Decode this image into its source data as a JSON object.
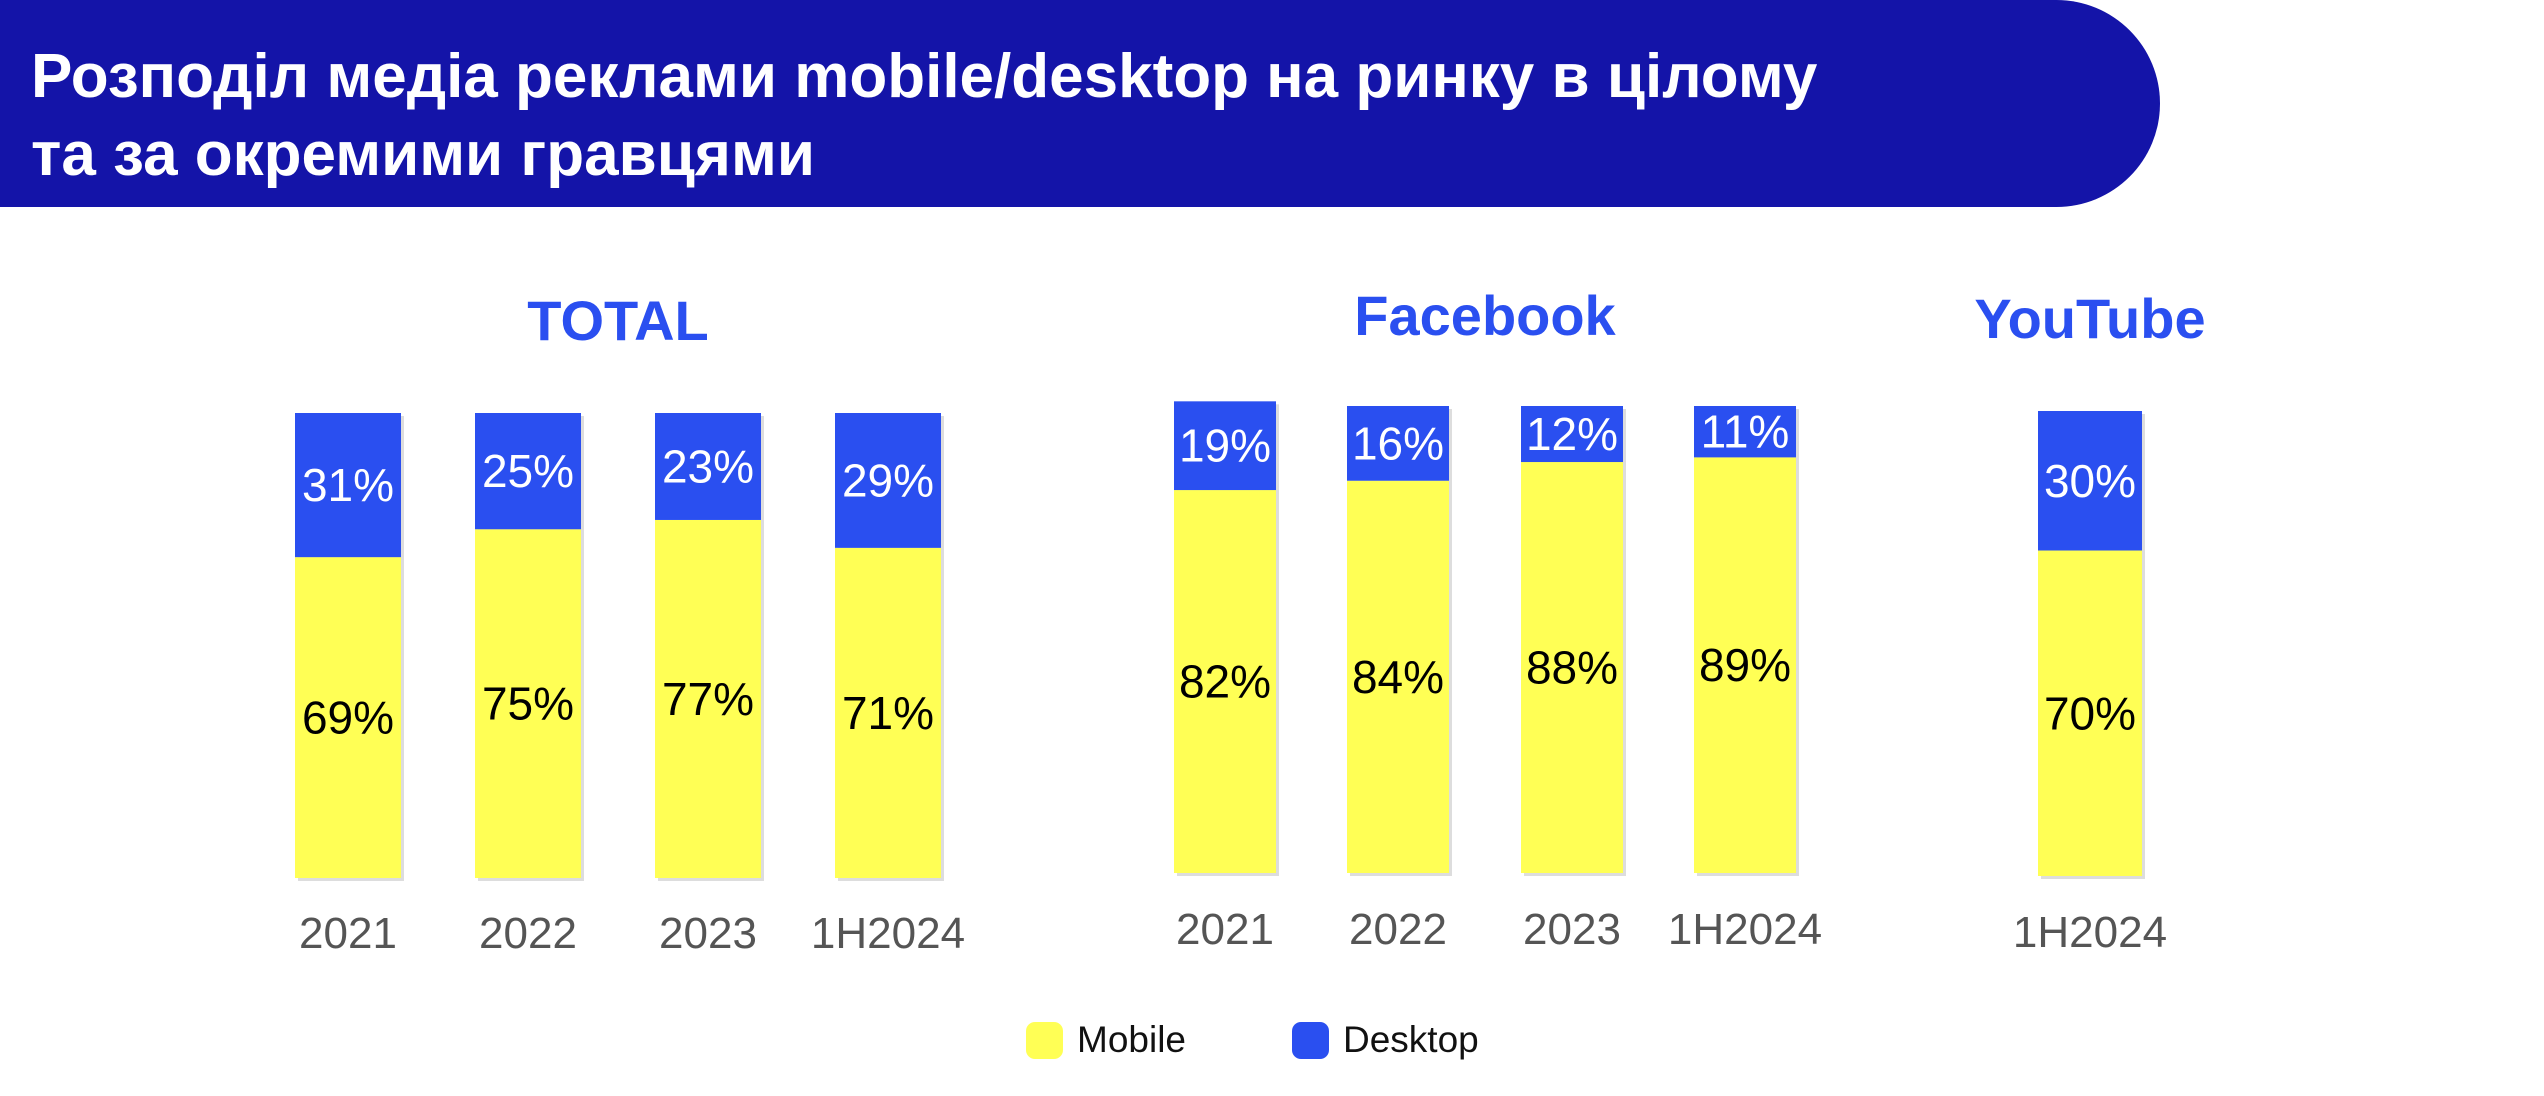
{
  "header": {
    "title_line1": "Розподіл медіа реклами mobile/desktop на ринку в цілому",
    "title_line2": "та за окремими гравцями"
  },
  "colors": {
    "banner": "#1414a8",
    "mobile": "#ffff55",
    "desktop": "#2a4ff0",
    "panel_title": "#2a4ff0",
    "axis_label": "#555555"
  },
  "legend": {
    "mobile_label": "Mobile",
    "desktop_label": "Desktop"
  },
  "chart_data": [
    {
      "type": "bar",
      "stacked": true,
      "title": "TOTAL",
      "categories": [
        "2021",
        "2022",
        "2023",
        "1H2024"
      ],
      "series": [
        {
          "name": "Mobile",
          "values": [
            69,
            75,
            77,
            71
          ],
          "labels": [
            "69%",
            "75%",
            "77%",
            "71%"
          ]
        },
        {
          "name": "Desktop",
          "values": [
            31,
            25,
            23,
            29
          ],
          "labels": [
            "31%",
            "25%",
            "23%",
            "29%"
          ]
        }
      ],
      "ylim": [
        0,
        100
      ]
    },
    {
      "type": "bar",
      "stacked": true,
      "title": "Facebook",
      "categories": [
        "2021",
        "2022",
        "2023",
        "1H2024"
      ],
      "series": [
        {
          "name": "Mobile",
          "values": [
            82,
            84,
            88,
            89
          ],
          "labels": [
            "82%",
            "84%",
            "88%",
            "89%"
          ]
        },
        {
          "name": "Desktop",
          "values": [
            19,
            16,
            12,
            11
          ],
          "labels": [
            "19%",
            "16%",
            "12%",
            "11%"
          ]
        }
      ],
      "ylim": [
        0,
        100
      ]
    },
    {
      "type": "bar",
      "stacked": true,
      "title": "YouTube",
      "categories": [
        "1H2024"
      ],
      "series": [
        {
          "name": "Mobile",
          "values": [
            70
          ],
          "labels": [
            "70%"
          ]
        },
        {
          "name": "Desktop",
          "values": [
            30
          ],
          "labels": [
            "30%"
          ]
        }
      ],
      "ylim": [
        0,
        100
      ]
    }
  ]
}
